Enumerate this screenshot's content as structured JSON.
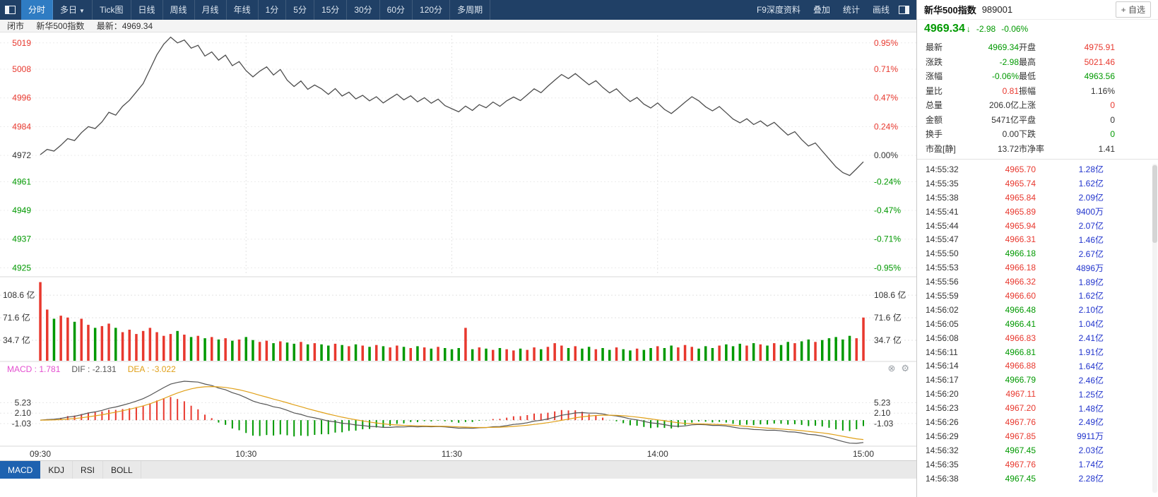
{
  "colors": {
    "up": "#e8382e",
    "down": "#009900",
    "flat": "#333333",
    "amount": "#2033cc",
    "macd_label": "#e44fd0",
    "dif": "#555555",
    "dea": "#e0a018",
    "price_line": "#4d4d4d",
    "toolbar_bg": "#204066",
    "toolbar_active": "#2f7cc3",
    "bottom_tab_active": "#1e62b0"
  },
  "toolbar": {
    "left_tabs": [
      {
        "name": "tab-intraday",
        "label": "分时",
        "active": true
      },
      {
        "name": "tab-multiday",
        "label": "多日",
        "caret": "▼"
      },
      {
        "name": "tab-tick",
        "label": "Tick图"
      },
      {
        "name": "tab-daily",
        "label": "日线"
      },
      {
        "name": "tab-weekly",
        "label": "周线"
      },
      {
        "name": "tab-monthly",
        "label": "月线"
      },
      {
        "name": "tab-yearly",
        "label": "年线"
      },
      {
        "name": "tab-1min",
        "label": "1分"
      },
      {
        "name": "tab-5min",
        "label": "5分"
      },
      {
        "name": "tab-15min",
        "label": "15分"
      },
      {
        "name": "tab-30min",
        "label": "30分"
      },
      {
        "name": "tab-60min",
        "label": "60分"
      },
      {
        "name": "tab-120min",
        "label": "120分"
      },
      {
        "name": "tab-multiperiod",
        "label": "多周期"
      }
    ],
    "right_tabs": [
      {
        "name": "f9-depth-info-button",
        "label": "F9深度资料"
      },
      {
        "name": "overlay-button",
        "label": "叠加"
      },
      {
        "name": "statistics-button",
        "label": "统计"
      },
      {
        "name": "draw-line-button",
        "label": "画线"
      }
    ]
  },
  "statusbar": {
    "market_state": "闭市",
    "index_name": "新华500指数",
    "latest_label": "最新：4969.34"
  },
  "chart_data": [
    {
      "type": "line",
      "name": "intraday-price",
      "title": "新华500指数 分时走势",
      "prev_close": 4972.32,
      "x_minutes_step": 2,
      "x_ticks": [
        {
          "label": "09:30",
          "min": 0
        },
        {
          "label": "10:30",
          "min": 60
        },
        {
          "label": "11:30",
          "min": 120
        },
        {
          "label": "14:00",
          "min": 180
        },
        {
          "label": "15:00",
          "min": 240
        }
      ],
      "y_axis_left": [
        {
          "t": "5019",
          "v": 5019,
          "c": "up"
        },
        {
          "t": "5008",
          "v": 5008,
          "c": "up"
        },
        {
          "t": "4996",
          "v": 4996,
          "c": "up"
        },
        {
          "t": "4984",
          "v": 4984,
          "c": "up"
        },
        {
          "t": "4972",
          "v": 4972,
          "c": "flat"
        },
        {
          "t": "4961",
          "v": 4961,
          "c": "down"
        },
        {
          "t": "4949",
          "v": 4949,
          "c": "down"
        },
        {
          "t": "4937",
          "v": 4937,
          "c": "down"
        },
        {
          "t": "4925",
          "v": 4925,
          "c": "down"
        }
      ],
      "y_axis_right": [
        {
          "t": "0.95%",
          "c": "up"
        },
        {
          "t": "0.71%",
          "c": "up"
        },
        {
          "t": "0.47%",
          "c": "up"
        },
        {
          "t": "0.24%",
          "c": "up"
        },
        {
          "t": "0.00%",
          "c": "flat"
        },
        {
          "t": "-0.24%",
          "c": "down"
        },
        {
          "t": "-0.47%",
          "c": "down"
        },
        {
          "t": "-0.71%",
          "c": "down"
        },
        {
          "t": "-0.95%",
          "c": "down"
        }
      ],
      "values": [
        4972.3,
        4974.5,
        4973.8,
        4976.2,
        4979,
        4978.2,
        4981.5,
        4984,
        4983.2,
        4986,
        4990,
        4988.8,
        4992.5,
        4995,
        4998.5,
        5002,
        5008,
        5014,
        5018.5,
        5021.4,
        5019,
        5020.2,
        5016.8,
        5018,
        5013.5,
        5015.2,
        5011.8,
        5013.9,
        5009.5,
        5011.2,
        5007.4,
        5004.8,
        5007.2,
        5009,
        5005.6,
        5007.9,
        5003.4,
        5000.8,
        5003.1,
        4999.6,
        5001.4,
        4999.8,
        4997.5,
        4999.9,
        4996.8,
        4998.4,
        4995.6,
        4997.1,
        4994.8,
        4996.5,
        4993.9,
        4995.8,
        4997.6,
        4995.2,
        4996.9,
        4994.4,
        4996.1,
        4993.8,
        4995.5,
        4992.8,
        4991.5,
        4990.2,
        4992.6,
        4990.8,
        4993.2,
        4991.9,
        4994.3,
        4992.5,
        4994.8,
        4996.4,
        4994.9,
        4997.3,
        4999.8,
        4998.2,
        5000.9,
        5003.4,
        5005.8,
        5004.1,
        5006.2,
        5003.8,
        5001.5,
        5003.2,
        5000.4,
        4998.1,
        4999.8,
        4996.9,
        4994.5,
        4996.2,
        4993.4,
        4991.8,
        4993.9,
        4991.2,
        4989.5,
        4991.8,
        4994.2,
        4996.5,
        4994.8,
        4992.3,
        4990.6,
        4992.4,
        4989.8,
        4987.2,
        4985.6,
        4987.3,
        4984.9,
        4986.4,
        4984.2,
        4985.8,
        4983.1,
        4980.5,
        4981.9,
        4978.6,
        4975.9,
        4977.2,
        4973.8,
        4970.5,
        4967.2,
        4964.8,
        4963.6,
        4966.4,
        4969.3
      ]
    },
    {
      "type": "bar",
      "name": "amount-volume",
      "unit": "亿",
      "y_ticks": [
        {
          "t": "108.6 亿",
          "v": 108.6
        },
        {
          "t": "71.6 亿",
          "v": 71.6
        },
        {
          "t": "34.7 亿",
          "v": 34.7
        }
      ],
      "values": [
        130,
        85,
        70,
        75,
        72,
        65,
        70,
        60,
        55,
        58,
        62,
        55,
        48,
        52,
        45,
        50,
        55,
        48,
        42,
        45,
        50,
        44,
        40,
        42,
        38,
        40,
        36,
        38,
        34,
        36,
        40,
        35,
        32,
        34,
        30,
        33,
        31,
        29,
        32,
        28,
        30,
        28,
        26,
        29,
        27,
        25,
        28,
        26,
        24,
        27,
        25,
        23,
        26,
        24,
        22,
        25,
        23,
        21,
        24,
        22,
        20,
        22,
        55,
        20,
        23,
        21,
        19,
        22,
        20,
        18,
        21,
        19,
        23,
        20,
        24,
        30,
        26,
        22,
        25,
        21,
        24,
        20,
        22,
        19,
        23,
        20,
        18,
        21,
        19,
        22,
        25,
        22,
        26,
        23,
        27,
        24,
        21,
        25,
        22,
        26,
        28,
        25,
        29,
        26,
        30,
        28,
        26,
        30,
        27,
        32,
        30,
        33,
        36,
        32,
        35,
        38,
        40,
        36,
        42,
        38,
        72
      ]
    },
    {
      "type": "macd",
      "name": "macd-indicator",
      "header": {
        "macd": "MACD : 1.781",
        "dif": "DIF : -2.131",
        "dea": "DEA : -3.022"
      },
      "close_icon": "⊗",
      "settings_icon": "⚙",
      "params": {
        "fast": 12,
        "slow": 26,
        "signal": 9
      },
      "y_ticks": [
        {
          "t": "5.23",
          "v": 5.23
        },
        {
          "t": "2.10",
          "v": 2.1
        },
        {
          "t": "-1.03",
          "v": -1.03
        }
      ]
    }
  ],
  "bottom_tabs": [
    {
      "name": "indicator-tab-macd",
      "label": "MACD",
      "active": true
    },
    {
      "name": "indicator-tab-kdj",
      "label": "KDJ"
    },
    {
      "name": "indicator-tab-rsi",
      "label": "RSI"
    },
    {
      "name": "indicator-tab-boll",
      "label": "BOLL"
    }
  ],
  "quote_panel": {
    "title": "新华500指数",
    "code": "989001",
    "add_watchlist": "+ 自选",
    "last_price": "4969.34",
    "arrow": "↓",
    "change": "-2.98",
    "change_pct": "-0.06%",
    "trend": "down",
    "rows": [
      {
        "l1": "最新",
        "v1": "4969.34",
        "c1": "down",
        "l2": "开盘",
        "v2": "4975.91",
        "c2": "up"
      },
      {
        "l1": "涨跌",
        "v1": "-2.98",
        "c1": "down",
        "l2": "最高",
        "v2": "5021.46",
        "c2": "up"
      },
      {
        "l1": "涨幅",
        "v1": "-0.06%",
        "c1": "down",
        "l2": "最低",
        "v2": "4963.56",
        "c2": "down"
      },
      {
        "l1": "量比",
        "v1": "0.81",
        "c1": "up",
        "l2": "振幅",
        "v2": "1.16%",
        "c2": "flat"
      },
      {
        "l1": "总量",
        "v1": "206.0亿",
        "c1": "flat",
        "l2": "上涨",
        "v2": "0",
        "c2": "up"
      },
      {
        "l1": "金额",
        "v1": "5471亿",
        "c1": "flat",
        "l2": "平盘",
        "v2": "0",
        "c2": "flat"
      },
      {
        "l1": "换手",
        "v1": "0.00",
        "c1": "flat",
        "l2": "下跌",
        "v2": "0",
        "c2": "down"
      },
      {
        "l1": "市盈[静]",
        "v1": "13.72",
        "c1": "flat",
        "l2": "市净率",
        "v2": "1.41",
        "c2": "flat"
      }
    ]
  },
  "tick_list": [
    {
      "t": "14:55:32",
      "p": "4965.70",
      "c": "up",
      "a": "1.28亿"
    },
    {
      "t": "14:55:35",
      "p": "4965.74",
      "c": "up",
      "a": "1.62亿"
    },
    {
      "t": "14:55:38",
      "p": "4965.84",
      "c": "up",
      "a": "2.09亿"
    },
    {
      "t": "14:55:41",
      "p": "4965.89",
      "c": "up",
      "a": "9400万"
    },
    {
      "t": "14:55:44",
      "p": "4965.94",
      "c": "up",
      "a": "2.07亿"
    },
    {
      "t": "14:55:47",
      "p": "4966.31",
      "c": "up",
      "a": "1.46亿"
    },
    {
      "t": "14:55:50",
      "p": "4966.18",
      "c": "down",
      "a": "2.67亿"
    },
    {
      "t": "14:55:53",
      "p": "4966.18",
      "c": "up",
      "a": "4896万"
    },
    {
      "t": "14:55:56",
      "p": "4966.32",
      "c": "up",
      "a": "1.89亿"
    },
    {
      "t": "14:55:59",
      "p": "4966.60",
      "c": "up",
      "a": "1.62亿"
    },
    {
      "t": "14:56:02",
      "p": "4966.48",
      "c": "down",
      "a": "2.10亿"
    },
    {
      "t": "14:56:05",
      "p": "4966.41",
      "c": "down",
      "a": "1.04亿"
    },
    {
      "t": "14:56:08",
      "p": "4966.83",
      "c": "up",
      "a": "2.41亿"
    },
    {
      "t": "14:56:11",
      "p": "4966.81",
      "c": "down",
      "a": "1.91亿"
    },
    {
      "t": "14:56:14",
      "p": "4966.88",
      "c": "up",
      "a": "1.64亿"
    },
    {
      "t": "14:56:17",
      "p": "4966.79",
      "c": "down",
      "a": "2.46亿"
    },
    {
      "t": "14:56:20",
      "p": "4967.11",
      "c": "up",
      "a": "1.25亿"
    },
    {
      "t": "14:56:23",
      "p": "4967.20",
      "c": "up",
      "a": "1.48亿"
    },
    {
      "t": "14:56:26",
      "p": "4967.76",
      "c": "up",
      "a": "2.49亿"
    },
    {
      "t": "14:56:29",
      "p": "4967.85",
      "c": "up",
      "a": "9911万"
    },
    {
      "t": "14:56:32",
      "p": "4967.45",
      "c": "down",
      "a": "2.03亿"
    },
    {
      "t": "14:56:35",
      "p": "4967.76",
      "c": "up",
      "a": "1.74亿"
    },
    {
      "t": "14:56:38",
      "p": "4967.45",
      "c": "down",
      "a": "2.28亿"
    }
  ]
}
